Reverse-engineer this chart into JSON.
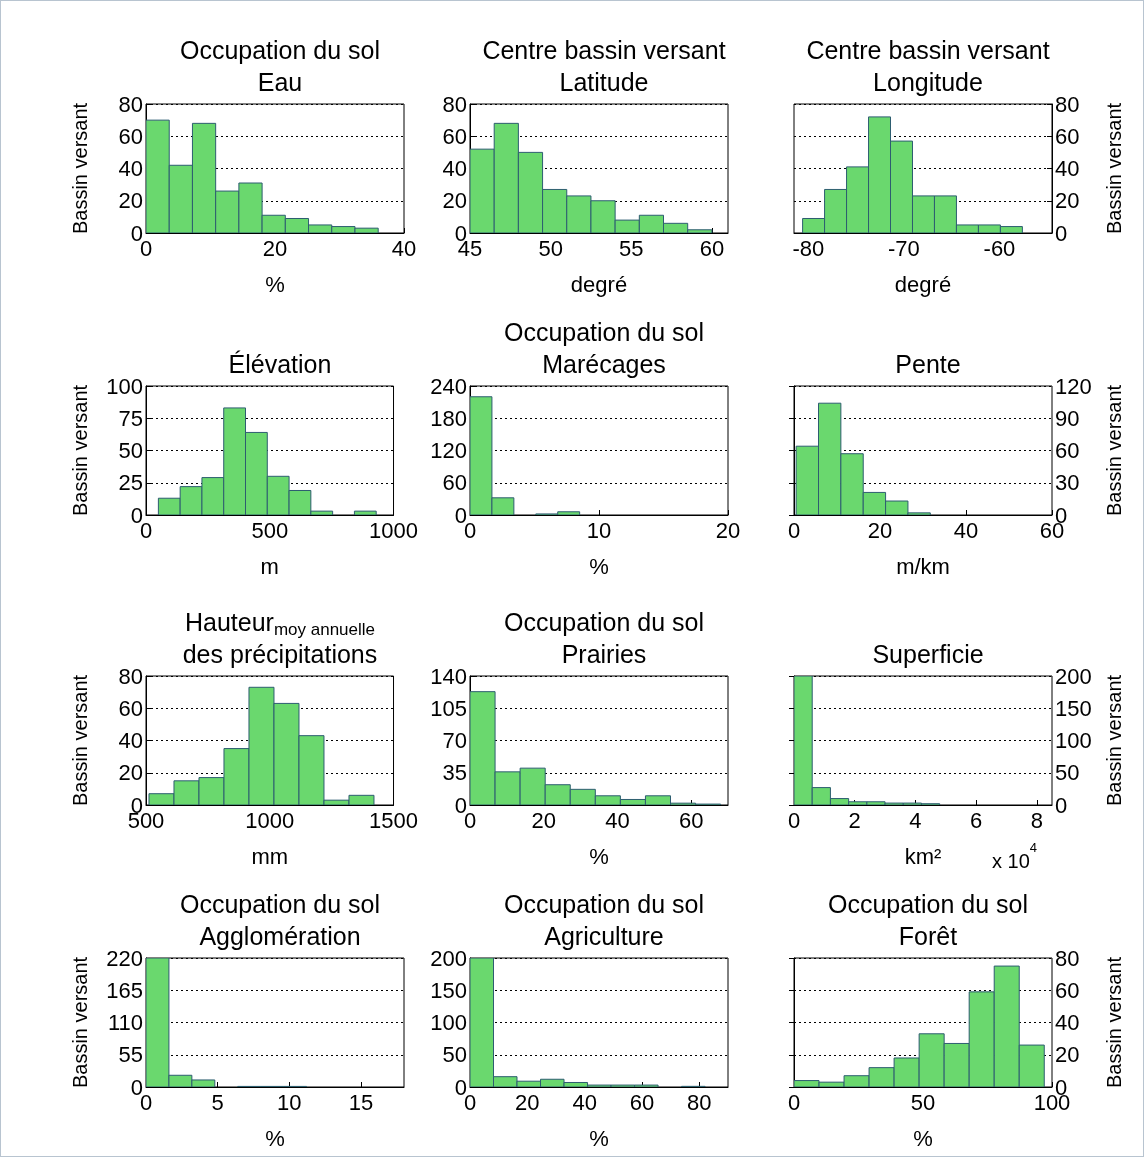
{
  "chart_data": [
    {
      "type": "histogram",
      "title": "Occupation du sol\nEau",
      "xlabel": "%",
      "ylabel": "Bassin versant",
      "color": "#6ad86e",
      "bins": [
        0,
        3.6,
        7.2,
        10.8,
        14.4,
        18,
        21.6,
        25.2,
        28.8,
        32.4,
        36
      ],
      "values": [
        70,
        42,
        68,
        26,
        31,
        11,
        9,
        5,
        4,
        3
      ],
      "xlim": [
        0,
        40
      ],
      "xticks": [
        0,
        20,
        40
      ],
      "ylim": [
        0,
        80
      ],
      "yticks": [
        0,
        20,
        40,
        60,
        80
      ],
      "grid": "y"
    },
    {
      "type": "histogram",
      "title": "Centre bassin versant\nLatitude",
      "xlabel": "degré",
      "color": "#6ad86e",
      "bins": [
        45,
        46.5,
        48,
        49.5,
        51,
        52.5,
        54,
        55.5,
        57,
        58.5,
        60
      ],
      "values": [
        52,
        68,
        50,
        27,
        23,
        20,
        8,
        11,
        6,
        2
      ],
      "xlim": [
        45,
        61
      ],
      "xticks": [
        45,
        50,
        55,
        60
      ],
      "ylim": [
        0,
        80
      ],
      "yticks": [
        0,
        20,
        40,
        60,
        80
      ],
      "grid": "y"
    },
    {
      "type": "histogram",
      "title": "Centre bassin versant\nLongitude",
      "xlabel": "degré",
      "ylabel": "Bassin versant",
      "color": "#6ad86e",
      "bins": [
        -80.6,
        -78.3,
        -76,
        -73.7,
        -71.4,
        -69.1,
        -66.8,
        -64.5,
        -62.2,
        -59.9,
        -57.6
      ],
      "values": [
        9,
        27,
        41,
        72,
        57,
        23,
        23,
        5,
        5,
        4
      ],
      "xlim": [
        -81.5,
        -54.5
      ],
      "xticks": [
        -80,
        -70,
        -60
      ],
      "ylim": [
        0,
        80
      ],
      "yticks": [
        0,
        20,
        40,
        60,
        80
      ],
      "grid": "y"
    },
    {
      "type": "histogram",
      "title": "Élévation",
      "xlabel": "m",
      "ylabel": "Bassin versant",
      "color": "#6ad86e",
      "bins": [
        50,
        138,
        226,
        314,
        402,
        490,
        578,
        666,
        754,
        842,
        930
      ],
      "values": [
        13,
        22,
        29,
        83,
        64,
        30,
        19,
        3,
        0,
        3
      ],
      "xlim": [
        0,
        1000
      ],
      "xticks": [
        0,
        500,
        1000
      ],
      "ylim": [
        0,
        100
      ],
      "yticks": [
        0,
        25,
        50,
        75,
        100
      ],
      "grid": "y"
    },
    {
      "type": "histogram",
      "title": "Occupation du sol\nMarécages",
      "xlabel": "%",
      "color": "#6ad86e",
      "bins": [
        0,
        1.7,
        3.4,
        5.1,
        6.8,
        8.5,
        10.2,
        11.9,
        13.6,
        15.3,
        17
      ],
      "values": [
        220,
        32,
        0,
        2,
        6,
        0,
        0,
        0,
        0,
        0
      ],
      "xlim": [
        0,
        20
      ],
      "xticks": [
        0,
        10,
        20
      ],
      "ylim": [
        0,
        240
      ],
      "yticks": [
        0,
        60,
        120,
        180,
        240
      ],
      "grid": "y"
    },
    {
      "type": "histogram",
      "title": "Pente",
      "xlabel": "m/km",
      "ylabel": "Bassin versant",
      "color": "#6ad86e",
      "bins": [
        0.5,
        5.7,
        10.9,
        16.1,
        21.3,
        26.5,
        31.7
      ],
      "values": [
        64,
        104,
        57,
        21,
        13,
        2
      ],
      "xlim": [
        0,
        60
      ],
      "xticks": [
        0,
        20,
        40,
        60
      ],
      "ylim": [
        0,
        120
      ],
      "yticks": [
        0,
        30,
        60,
        90,
        120
      ],
      "grid": "y"
    },
    {
      "type": "histogram",
      "title": "Hauteur$_{moy annuelle}$\ndes précipitations",
      "xlabel": "mm",
      "ylabel": "Bassin versant",
      "color": "#6ad86e",
      "bins": [
        512,
        613,
        714,
        815,
        916,
        1017,
        1118,
        1219,
        1320,
        1421
      ],
      "values": [
        7,
        15,
        17,
        35,
        73,
        63,
        43,
        3,
        6
      ],
      "xlim": [
        500,
        1500
      ],
      "xticks": [
        500,
        1000,
        1500
      ],
      "ylim": [
        0,
        80
      ],
      "yticks": [
        0,
        20,
        40,
        60,
        80
      ],
      "grid": "y"
    },
    {
      "type": "histogram",
      "title": "Occupation du sol\nPrairies",
      "xlabel": "%",
      "color": "#6ad86e",
      "bins": [
        0,
        6.8,
        13.6,
        20.4,
        27.2,
        34,
        40.8,
        47.6,
        54.4,
        61.2,
        68
      ],
      "values": [
        123,
        36,
        40,
        22,
        17,
        10,
        6,
        10,
        2,
        1
      ],
      "xlim": [
        0,
        70
      ],
      "xticks": [
        0,
        20,
        40,
        60
      ],
      "ylim": [
        0,
        140
      ],
      "yticks": [
        0,
        35,
        70,
        105,
        140
      ],
      "grid": "y"
    },
    {
      "type": "histogram",
      "title": "Superficie",
      "xlabel": "km²",
      "ylabel": "Bassin versant",
      "annotations": [
        "x 10$^{4}$"
      ],
      "color": "#6ad86e",
      "bins": [
        0,
        0.6,
        1.2,
        1.8,
        2.4,
        3,
        3.6,
        4.2,
        4.8
      ],
      "values": [
        200,
        27,
        10,
        5,
        5,
        3,
        3,
        2
      ],
      "xlim": [
        0,
        8.5
      ],
      "xticks": [
        0,
        2,
        4,
        6,
        8
      ],
      "ylim": [
        0,
        200
      ],
      "yticks": [
        0,
        50,
        100,
        150,
        200
      ],
      "grid": "y"
    },
    {
      "type": "histogram",
      "title": "Occupation du sol\nAgglomération",
      "xlabel": "%",
      "ylabel": "Bassin versant",
      "color": "#6ad86e",
      "bins": [
        0,
        1.6,
        3.2,
        4.8,
        6.4,
        8,
        9.6,
        11.2
      ],
      "values": [
        220,
        20,
        12,
        0,
        1,
        1,
        1
      ],
      "xlim": [
        0,
        18
      ],
      "xticks": [
        0,
        5,
        10,
        15
      ],
      "ylim": [
        0,
        220
      ],
      "yticks": [
        0,
        55,
        110,
        165,
        220
      ],
      "grid": "y"
    },
    {
      "type": "histogram",
      "title": "Occupation du sol\nAgriculture",
      "xlabel": "%",
      "color": "#6ad86e",
      "bins": [
        0,
        8.2,
        16.4,
        24.6,
        32.8,
        41,
        49.2,
        57.4,
        65.6,
        73.8,
        82
      ],
      "values": [
        200,
        16,
        9,
        12,
        7,
        3,
        3,
        3,
        0,
        1
      ],
      "xlim": [
        0,
        90
      ],
      "xticks": [
        0,
        20,
        40,
        60,
        80
      ],
      "ylim": [
        0,
        200
      ],
      "yticks": [
        0,
        50,
        100,
        150,
        200
      ],
      "grid": "y"
    },
    {
      "type": "histogram",
      "title": "Occupation du sol\nForêt",
      "xlabel": "%",
      "ylabel": "Bassin versant",
      "color": "#6ad86e",
      "bins": [
        0,
        9.7,
        19.4,
        29.1,
        38.8,
        48.5,
        58.2,
        67.9,
        77.6,
        87.3,
        97
      ],
      "values": [
        4,
        3,
        7,
        12,
        18,
        33,
        27,
        59,
        75,
        26
      ],
      "xlim": [
        0,
        100
      ],
      "xticks": [
        0,
        50,
        100
      ],
      "ylim": [
        0,
        80
      ],
      "yticks": [
        0,
        20,
        40,
        60,
        80
      ],
      "grid": "y"
    }
  ]
}
